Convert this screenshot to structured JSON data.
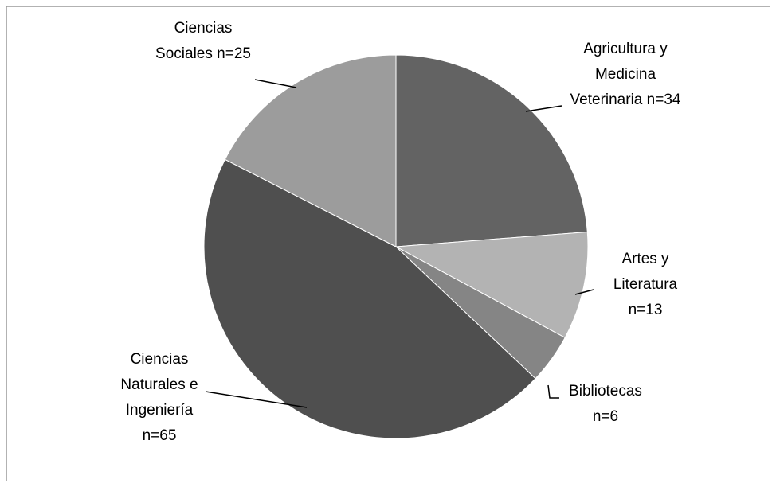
{
  "chart_data": {
    "type": "pie",
    "categories": [
      "Agricultura y Medicina Veterinaria",
      "Artes y Literatura",
      "Bibliotecas",
      "Ciencias Naturales e Ingeniería",
      "Ciencias Sociales"
    ],
    "values": [
      34,
      13,
      6,
      65,
      25
    ],
    "value_labels": [
      "n=34",
      "n=13",
      "n=6",
      "n=65",
      "n=25"
    ],
    "colors": [
      "#636363",
      "#b3b3b3",
      "#858585",
      "#4f4f4f",
      "#9c9c9c"
    ]
  }
}
